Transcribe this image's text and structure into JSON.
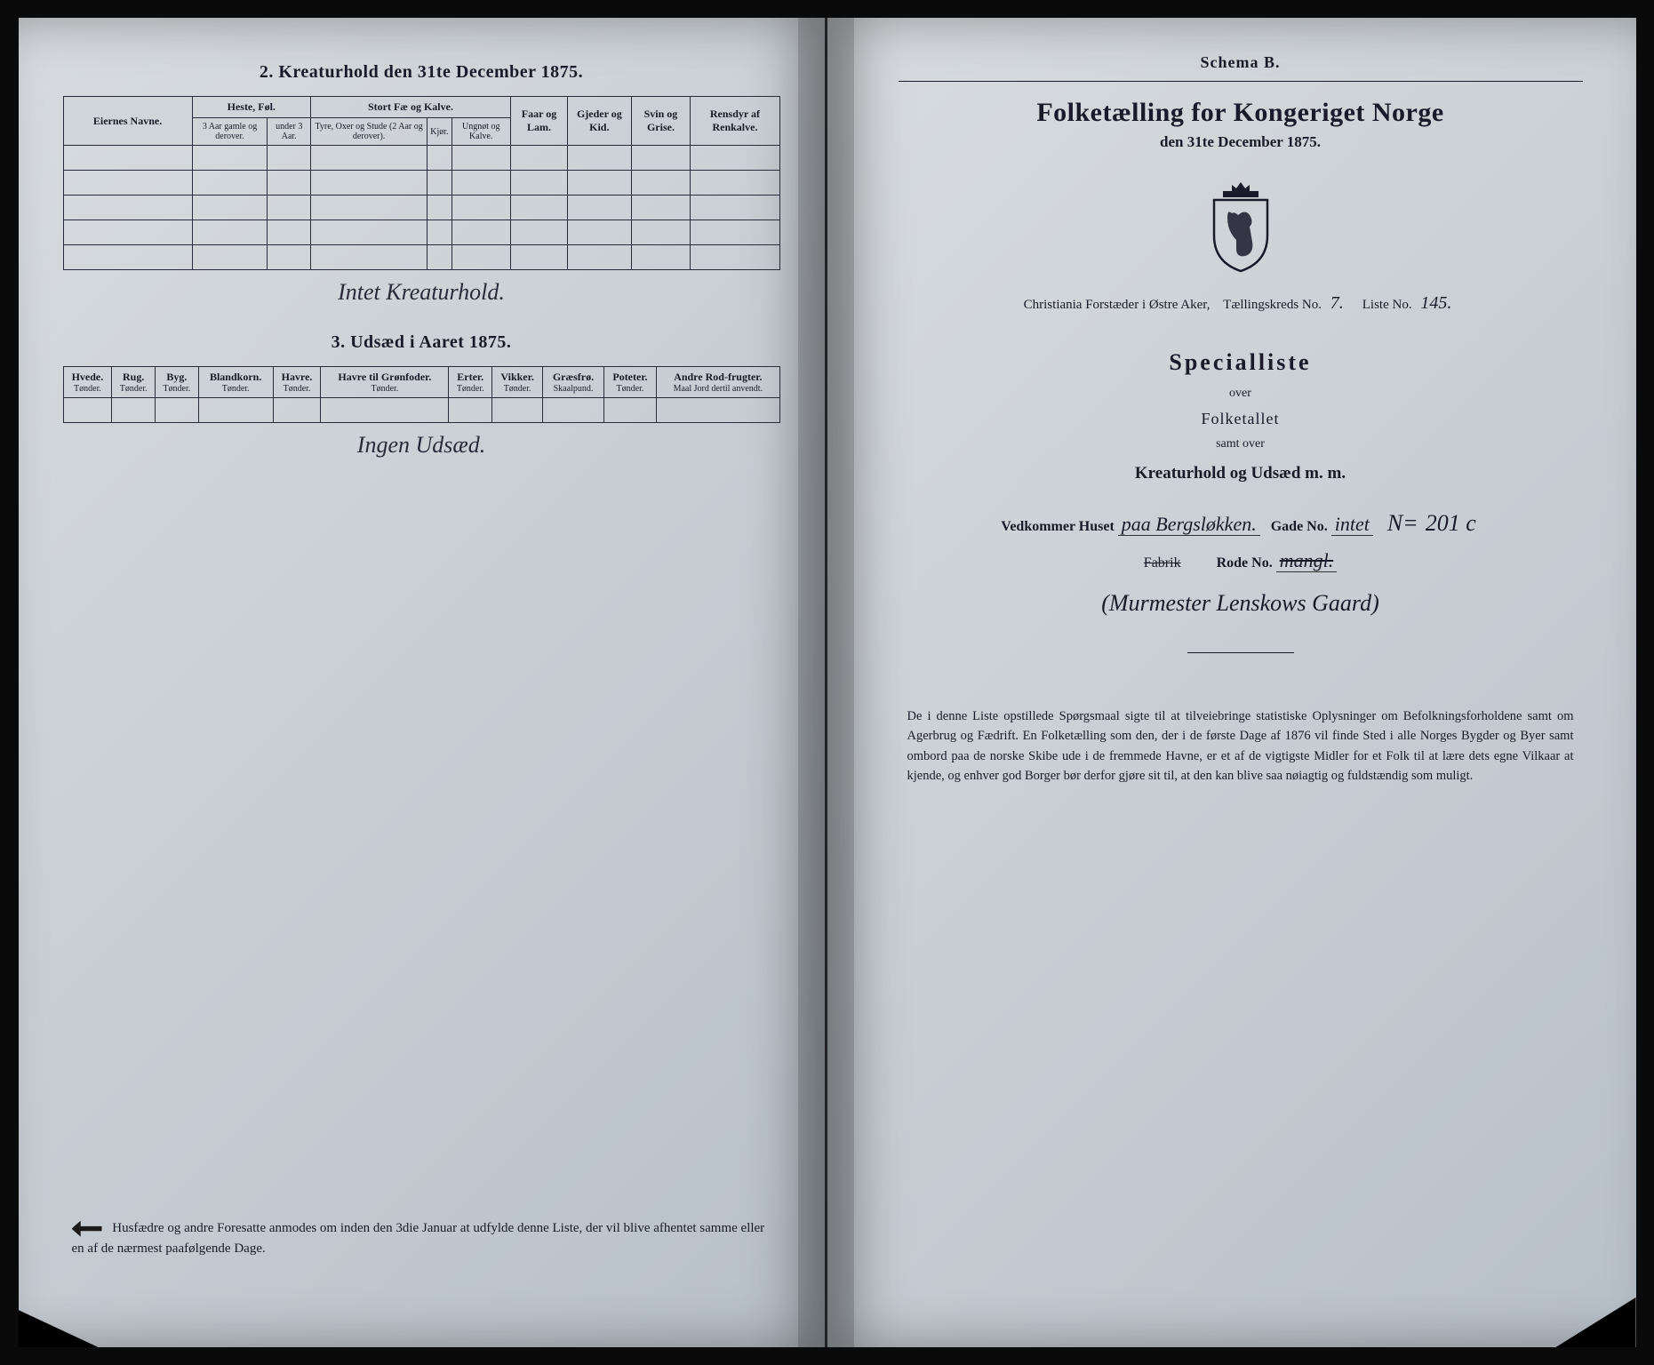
{
  "left": {
    "section2": {
      "title": "2.  Kreaturhold den 31te December 1875.",
      "group_headers": [
        "Eiernes Navne.",
        "Heste, Føl.",
        "Stort Fæ og Kalve.",
        "Faar og Lam.",
        "Gjeder og Kid.",
        "Svin og Grise.",
        "Rensdyr af Renkalve."
      ],
      "sub_headers": {
        "heste": [
          "3 Aar gamle og derover.",
          "under 3 Aar."
        ],
        "stort": [
          "Tyre, Oxer og Stude (2 Aar og derover).",
          "Kjør.",
          "Ungnøt og Kalve."
        ]
      },
      "handwritten_note": "Intet Kreaturhold."
    },
    "section3": {
      "title": "3.  Udsæd i Aaret 1875.",
      "headers": [
        {
          "h": "Hvede.",
          "s": "Tønder."
        },
        {
          "h": "Rug.",
          "s": "Tønder."
        },
        {
          "h": "Byg.",
          "s": "Tønder."
        },
        {
          "h": "Blandkorn.",
          "s": "Tønder."
        },
        {
          "h": "Havre.",
          "s": "Tønder."
        },
        {
          "h": "Havre til Grønfoder.",
          "s": "Tønder."
        },
        {
          "h": "Erter.",
          "s": "Tønder."
        },
        {
          "h": "Vikker.",
          "s": "Tønder."
        },
        {
          "h": "Græsfrø.",
          "s": "Skaalpund."
        },
        {
          "h": "Poteter.",
          "s": "Tønder."
        },
        {
          "h": "Andre Rod-frugter.",
          "s": "Maal Jord dertil anvendt."
        }
      ],
      "handwritten_note": "Ingen Udsæd."
    },
    "footer": "Husfædre og andre Foresatte anmodes om inden den 3die Januar at udfylde denne Liste, der vil blive afhentet samme eller en af de nærmest paafølgende Dage."
  },
  "right": {
    "schema": "Schema B.",
    "main_title": "Folketælling for Kongeriget Norge",
    "main_sub": "den 31te December 1875.",
    "kreds": {
      "prefix": "Christiania Forstæder i Østre Aker,",
      "kreds_lbl": "Tællingskreds No.",
      "kreds_no": "7.",
      "liste_lbl": "Liste No.",
      "liste_no": "145."
    },
    "special": "Specialliste",
    "over": "over",
    "folket": "Folketallet",
    "samt": "samt over",
    "kreat": "Kreaturhold og Udsæd m. m.",
    "line1": {
      "lbl": "Vedkommer Huset",
      "hw1": "paa Bergsløkken.",
      "gade_lbl": "Gade No.",
      "gade_hw": "intet",
      "n_lbl": "N=",
      "n_hw": "201 c"
    },
    "line2": {
      "strike": "Fabrik",
      "rode_lbl": "Rode No.",
      "rode_hw": "mangl."
    },
    "paren": "(Murmester Lenskows Gaard)",
    "bottom": "De i denne Liste opstillede Spørgsmaal sigte til at tilveiebringe statistiske Oplysninger om Befolkningsforholdene samt om Agerbrug og Fædrift. En Folketælling som den, der i de første Dage af 1876 vil finde Sted i alle Norges Bygder og Byer samt ombord paa de norske Skibe ude i de fremmede Havne, er et af de vigtigste Midler for et Folk til at lære dets egne Vilkaar at kjende, og enhver god Borger bør derfor gjøre sit til, at den kan blive saa nøiagtig og fuldstændig som muligt."
  },
  "colors": {
    "paper": "#c8ced4",
    "ink": "#1a1a2a",
    "background": "#0a0a0a"
  }
}
